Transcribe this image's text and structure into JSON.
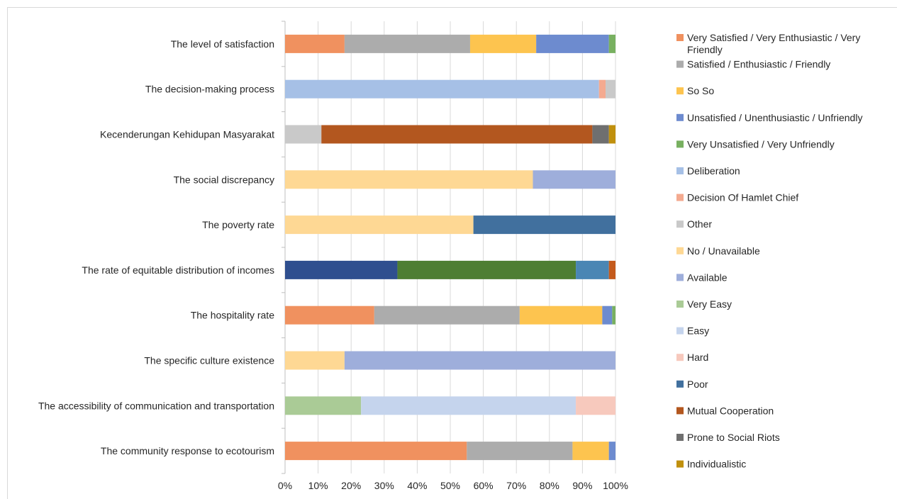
{
  "chart_data": {
    "type": "bar",
    "orientation": "horizontal",
    "stacked": "percent",
    "xlim": [
      0,
      100
    ],
    "x_ticks": [
      "0%",
      "10%",
      "20%",
      "30%",
      "40%",
      "50%",
      "60%",
      "70%",
      "80%",
      "90%",
      "100%"
    ],
    "grid": true,
    "legend_position": "right",
    "categories": [
      "The level of satisfaction",
      "The decision-making process",
      "Kecenderungan Kehidupan Masyarakat",
      "The social discrepancy",
      "The poverty rate",
      "The rate of equitable distribution of incomes",
      "The hospitality rate",
      "The specific culture existence",
      "The accessibility of communication and transportation",
      "The community response to ecotourism"
    ],
    "series": [
      {
        "name": "Very Satisfied / Very Enthusiastic / Very Friendly",
        "color": "#f0915f",
        "values": [
          18,
          0,
          0,
          0,
          0,
          0,
          27,
          0,
          0,
          55
        ]
      },
      {
        "name": "Satisfied / Enthusiastic / Friendly",
        "color": "#acacac",
        "values": [
          38,
          0,
          0,
          0,
          0,
          0,
          44,
          0,
          0,
          32
        ]
      },
      {
        "name": "So So",
        "color": "#fdc44f",
        "values": [
          20,
          0,
          0,
          0,
          0,
          0,
          25,
          0,
          0,
          11
        ]
      },
      {
        "name": "Unsatisfied / Unenthusiastic / Unfriendly",
        "color": "#6d8bcf",
        "values": [
          22,
          0,
          0,
          0,
          0,
          0,
          3,
          0,
          0,
          2
        ]
      },
      {
        "name": "Very Unsatisfied / Very Unfriendly",
        "color": "#78b060",
        "values": [
          2,
          0,
          0,
          0,
          0,
          0,
          1,
          0,
          0,
          0
        ]
      },
      {
        "name": "Deliberation",
        "color": "#a6c0e6",
        "values": [
          0,
          95,
          0,
          0,
          0,
          0,
          0,
          0,
          0,
          0
        ]
      },
      {
        "name": "Decision Of Hamlet Chief",
        "color": "#f4aa90",
        "values": [
          0,
          2,
          0,
          0,
          0,
          0,
          0,
          0,
          0,
          0
        ]
      },
      {
        "name": "Other",
        "color": "#c9c9c9",
        "values": [
          0,
          3,
          11,
          0,
          0,
          0,
          0,
          0,
          0,
          0
        ]
      },
      {
        "name": "No / Unavailable",
        "color": "#fed894",
        "values": [
          0,
          0,
          0,
          75,
          57,
          0,
          0,
          18,
          0,
          0
        ]
      },
      {
        "name": "Available",
        "color": "#9eaedb",
        "values": [
          0,
          0,
          0,
          25,
          0,
          0,
          0,
          82,
          0,
          0
        ]
      },
      {
        "name": "Very Easy",
        "color": "#aacb96",
        "values": [
          0,
          0,
          0,
          0,
          0,
          0,
          0,
          0,
          23,
          0
        ]
      },
      {
        "name": "Easy",
        "color": "#c5d4ed",
        "values": [
          0,
          0,
          0,
          0,
          0,
          0,
          0,
          0,
          65,
          0
        ]
      },
      {
        "name": "Hard",
        "color": "#f7c9bd",
        "values": [
          0,
          0,
          0,
          0,
          0,
          0,
          0,
          0,
          12,
          0
        ]
      },
      {
        "name": "Poor",
        "color": "#41709e",
        "values": [
          0,
          0,
          0,
          0,
          43,
          0,
          0,
          0,
          0,
          0
        ]
      },
      {
        "name": "Mutual Cooperation",
        "color": "#b3571f",
        "values": [
          0,
          0,
          82,
          0,
          0,
          0,
          0,
          0,
          0,
          0
        ]
      },
      {
        "name": "Prone to Social Riots",
        "color": "#6f6f6f",
        "values": [
          0,
          0,
          5,
          0,
          0,
          0,
          0,
          0,
          0,
          0
        ]
      },
      {
        "name": "Individualistic",
        "color": "#c0900d",
        "values": [
          0,
          0,
          2,
          0,
          0,
          0,
          0,
          0,
          0,
          0
        ]
      }
    ],
    "extra_series": [
      {
        "color": "#2f4f8f",
        "values": [
          0,
          0,
          0,
          0,
          0,
          34,
          0,
          0,
          0,
          0
        ]
      },
      {
        "color": "#4e7e33",
        "values": [
          0,
          0,
          0,
          0,
          0,
          54,
          0,
          0,
          0,
          0
        ]
      },
      {
        "color": "#4a86b4",
        "values": [
          0,
          0,
          0,
          0,
          0,
          10,
          0,
          0,
          0,
          0
        ]
      },
      {
        "color": "#c45a1c",
        "values": [
          0,
          0,
          0,
          0,
          0,
          2,
          0,
          0,
          0,
          0
        ]
      }
    ]
  }
}
